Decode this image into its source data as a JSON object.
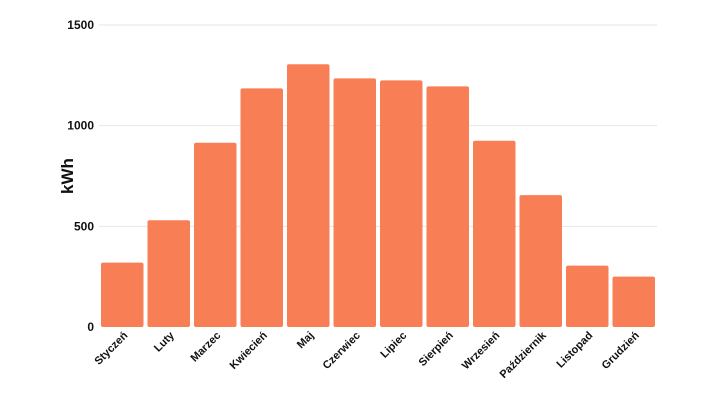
{
  "chart_data": {
    "type": "bar",
    "title": "",
    "xlabel": "",
    "ylabel": "kWh",
    "ylim": [
      0,
      1500
    ],
    "yticks": [
      0,
      500,
      1000,
      1500
    ],
    "grid": true,
    "bar_color": "#f77e55",
    "categories": [
      "Styczeń",
      "Luty",
      "Marzec",
      "Kwiecień",
      "Maj",
      "Czerwiec",
      "Lipiec",
      "Sierpień",
      "Wrzesień",
      "Październik",
      "Listopad",
      "Grudzień"
    ],
    "values": [
      320,
      530,
      915,
      1185,
      1305,
      1235,
      1225,
      1195,
      925,
      655,
      305,
      250
    ]
  }
}
